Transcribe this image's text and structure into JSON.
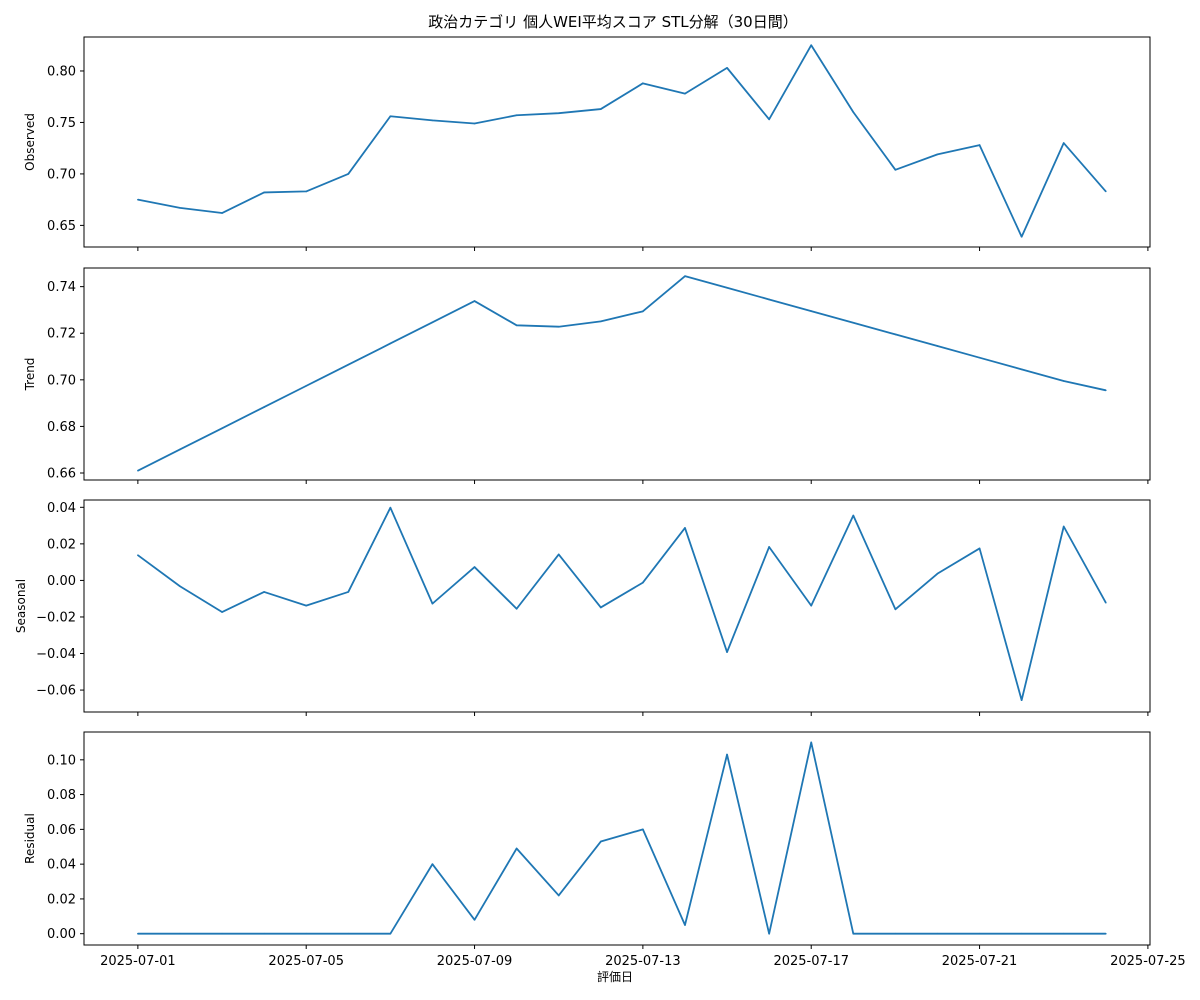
{
  "chart_data": {
    "type": "line",
    "title": "政治カテゴリ 個人WEI平均スコア STL分解（30日間）",
    "xlabel": "評価日",
    "x": [
      "2025-07-01",
      "2025-07-02",
      "2025-07-03",
      "2025-07-04",
      "2025-07-05",
      "2025-07-06",
      "2025-07-07",
      "2025-07-08",
      "2025-07-09",
      "2025-07-10",
      "2025-07-11",
      "2025-07-12",
      "2025-07-13",
      "2025-07-14",
      "2025-07-15",
      "2025-07-16",
      "2025-07-17",
      "2025-07-18",
      "2025-07-19",
      "2025-07-20",
      "2025-07-21",
      "2025-07-22",
      "2025-07-23",
      "2025-07-24"
    ],
    "x_ticks": [
      "2025-07-01",
      "2025-07-05",
      "2025-07-09",
      "2025-07-13",
      "2025-07-17",
      "2025-07-21",
      "2025-07-25"
    ],
    "x_range": [
      "2024-06-29",
      "2025-07-25"
    ],
    "line_color": "#1f77b4",
    "grid": false,
    "panels": [
      {
        "ylabel": "Observed",
        "ylim": [
          0.629,
          0.833
        ],
        "yticks": [
          "0.65",
          "0.70",
          "0.75",
          "0.80"
        ],
        "values": [
          0.675,
          0.667,
          0.662,
          0.682,
          0.683,
          0.7,
          0.756,
          0.752,
          0.749,
          0.757,
          0.759,
          0.763,
          0.788,
          0.778,
          0.803,
          0.753,
          0.825,
          0.76,
          0.704,
          0.719,
          0.728,
          0.639,
          0.73,
          0.683
        ]
      },
      {
        "ylabel": "Trend",
        "ylim": [
          0.657,
          0.748
        ],
        "yticks": [
          "0.66",
          "0.68",
          "0.70",
          "0.72",
          "0.74"
        ],
        "values": [
          0.661,
          0.6701,
          0.6792,
          0.6883,
          0.6974,
          0.7065,
          0.7156,
          0.7247,
          0.7338,
          0.7234,
          0.7228,
          0.7251,
          0.7294,
          0.7445,
          0.7395,
          0.7345,
          0.7295,
          0.7245,
          0.7195,
          0.7145,
          0.7095,
          0.7045,
          0.6995,
          0.6955
        ]
      },
      {
        "ylabel": "Seasonal",
        "ylim": [
          -0.072,
          0.044
        ],
        "yticks": [
          "0.04",
          "0.02",
          "0.00",
          "−0.02",
          "−0.04",
          "−0.06"
        ],
        "values": [
          0.0138,
          -0.0032,
          -0.0173,
          -0.0063,
          -0.0138,
          -0.0063,
          0.0398,
          -0.0127,
          0.0073,
          -0.0155,
          0.0142,
          -0.0148,
          -0.0012,
          0.0287,
          -0.0392,
          0.0183,
          -0.0138,
          0.0355,
          -0.0158,
          0.0037,
          0.0175,
          -0.0655,
          0.0295,
          -0.0122
        ]
      },
      {
        "ylabel": "Residual",
        "ylim": [
          -0.0065,
          0.116
        ],
        "yticks": [
          "0.00",
          "0.02",
          "0.04",
          "0.06",
          "0.08",
          "0.10"
        ],
        "values": [
          0,
          0,
          0,
          0,
          0,
          0,
          0,
          0.04,
          0.008,
          0.049,
          0.022,
          0.053,
          0.06,
          0.005,
          0.103,
          0,
          0.11,
          0,
          0,
          0,
          0,
          0,
          0,
          0
        ]
      }
    ]
  }
}
